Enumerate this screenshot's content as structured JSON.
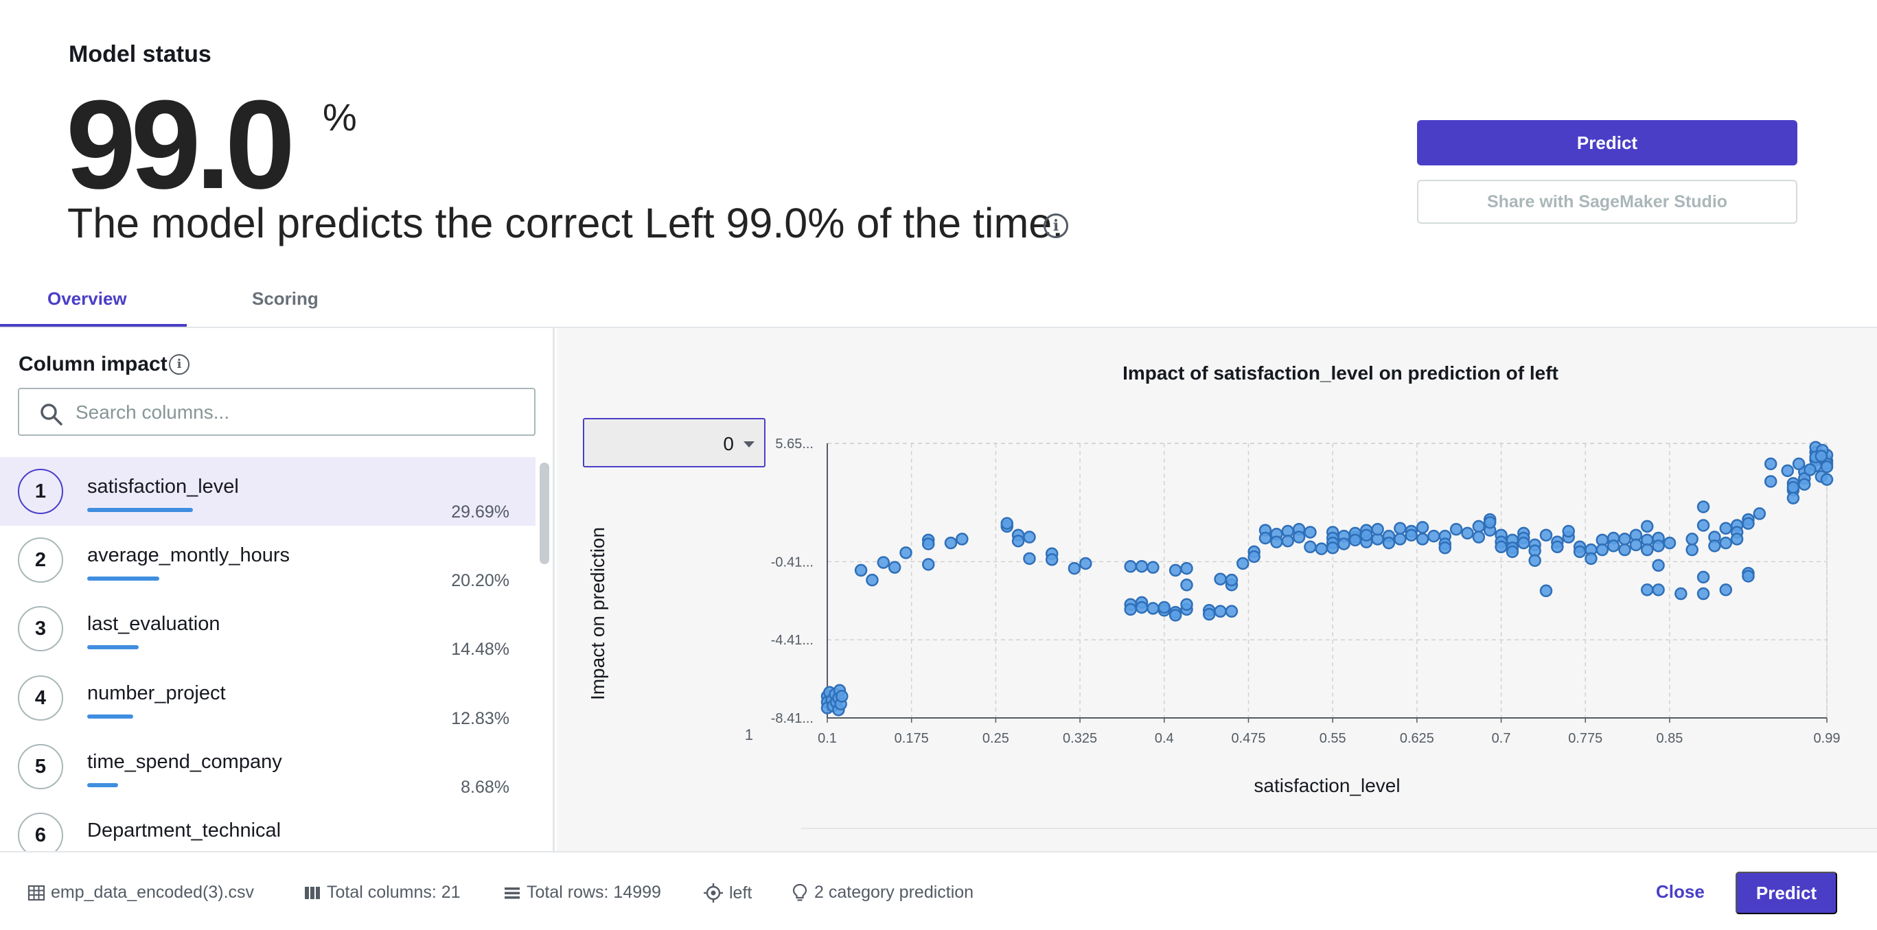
{
  "header": {
    "title": "Model status",
    "accuracy_value": "99.0",
    "accuracy_unit": "%",
    "summary": "The model predicts the correct Left 99.0% of the time.",
    "predict_label": "Predict",
    "share_label": "Share with SageMaker Studio"
  },
  "tabs": [
    {
      "label": "Overview",
      "active": true
    },
    {
      "label": "Scoring",
      "active": false
    }
  ],
  "column_impact": {
    "title": "Column impact",
    "search_placeholder": "Search columns...",
    "items": [
      {
        "rank": "1",
        "name": "satisfaction_level",
        "percent": "29.69%",
        "value": 29.69
      },
      {
        "rank": "2",
        "name": "average_montly_hours",
        "percent": "20.20%",
        "value": 20.2
      },
      {
        "rank": "3",
        "name": "last_evaluation",
        "percent": "14.48%",
        "value": 14.48
      },
      {
        "rank": "4",
        "name": "number_project",
        "percent": "12.83%",
        "value": 12.83
      },
      {
        "rank": "5",
        "name": "time_spend_company",
        "percent": "8.68%",
        "value": 8.68
      },
      {
        "rank": "6",
        "name": "Department_technical",
        "percent": "",
        "value": 0
      }
    ]
  },
  "chart_panel": {
    "class_select_value": "0",
    "stray_label": "1"
  },
  "chart_data": {
    "type": "scatter",
    "title": "Impact of satisfaction_level on prediction of left",
    "xlabel": "satisfaction_level",
    "ylabel": "Impact on prediction",
    "xlim": [
      0.1,
      0.99
    ],
    "ylim": [
      -8.41,
      5.65
    ],
    "x_ticks": [
      0.1,
      0.175,
      0.25,
      0.325,
      0.4,
      0.475,
      0.55,
      0.625,
      0.7,
      0.775,
      0.85,
      0.99
    ],
    "x_tick_labels": [
      "0.1",
      "0.175",
      "0.25",
      "0.325",
      "0.4",
      "0.475",
      "0.55",
      "0.625",
      "0.7",
      "0.775",
      "0.85",
      "0.99"
    ],
    "y_ticks": [
      5.65,
      -0.41,
      -4.41,
      -8.41
    ],
    "y_tick_labels": [
      "5.65...",
      "-0.41...",
      "-4.41...",
      "-8.41..."
    ],
    "grid": true,
    "point_color": "#5a9fe6",
    "point_stroke": "#2f6fb8",
    "points": [
      [
        0.1,
        -7.3
      ],
      [
        0.1,
        -7.6
      ],
      [
        0.1,
        -7.9
      ],
      [
        0.102,
        -7.1
      ],
      [
        0.104,
        -7.5
      ],
      [
        0.105,
        -7.8
      ],
      [
        0.107,
        -7.2
      ],
      [
        0.108,
        -7.6
      ],
      [
        0.11,
        -7.4
      ],
      [
        0.11,
        -8.0
      ],
      [
        0.111,
        -7.0
      ],
      [
        0.112,
        -7.7
      ],
      [
        0.113,
        -7.3
      ],
      [
        0.13,
        -0.85
      ],
      [
        0.14,
        -1.35
      ],
      [
        0.15,
        -0.45
      ],
      [
        0.16,
        -0.7
      ],
      [
        0.17,
        0.05
      ],
      [
        0.19,
        0.7
      ],
      [
        0.19,
        0.5
      ],
      [
        0.19,
        -0.55
      ],
      [
        0.21,
        0.55
      ],
      [
        0.22,
        0.75
      ],
      [
        0.26,
        1.4
      ],
      [
        0.26,
        1.55
      ],
      [
        0.27,
        0.95
      ],
      [
        0.27,
        0.65
      ],
      [
        0.28,
        0.85
      ],
      [
        0.28,
        -0.25
      ],
      [
        0.3,
        0.0
      ],
      [
        0.3,
        -0.3
      ],
      [
        0.32,
        -0.75
      ],
      [
        0.33,
        -0.5
      ],
      [
        0.37,
        -0.65
      ],
      [
        0.38,
        -0.65
      ],
      [
        0.37,
        -2.6
      ],
      [
        0.37,
        -2.85
      ],
      [
        0.38,
        -2.5
      ],
      [
        0.38,
        -2.75
      ],
      [
        0.39,
        -2.8
      ],
      [
        0.4,
        -2.9
      ],
      [
        0.4,
        -2.75
      ],
      [
        0.41,
        -3.0
      ],
      [
        0.41,
        -3.15
      ],
      [
        0.42,
        -2.85
      ],
      [
        0.42,
        -2.6
      ],
      [
        0.39,
        -0.7
      ],
      [
        0.41,
        -0.85
      ],
      [
        0.42,
        -0.75
      ],
      [
        0.42,
        -1.6
      ],
      [
        0.44,
        -2.9
      ],
      [
        0.44,
        -3.1
      ],
      [
        0.45,
        -2.95
      ],
      [
        0.46,
        -2.95
      ],
      [
        0.45,
        -1.3
      ],
      [
        0.46,
        -1.6
      ],
      [
        0.46,
        -1.35
      ],
      [
        0.47,
        -0.5
      ],
      [
        0.48,
        0.1
      ],
      [
        0.48,
        -0.15
      ],
      [
        0.49,
        1.2
      ],
      [
        0.49,
        0.8
      ],
      [
        0.5,
        1.0
      ],
      [
        0.5,
        0.6
      ],
      [
        0.51,
        1.15
      ],
      [
        0.51,
        0.65
      ],
      [
        0.52,
        1.25
      ],
      [
        0.52,
        0.85
      ],
      [
        0.53,
        1.1
      ],
      [
        0.53,
        0.35
      ],
      [
        0.54,
        0.25
      ],
      [
        0.55,
        1.1
      ],
      [
        0.55,
        0.8
      ],
      [
        0.55,
        0.55
      ],
      [
        0.55,
        0.3
      ],
      [
        0.56,
        0.9
      ],
      [
        0.56,
        0.5
      ],
      [
        0.57,
        0.85
      ],
      [
        0.57,
        1.05
      ],
      [
        0.57,
        0.7
      ],
      [
        0.58,
        0.6
      ],
      [
        0.58,
        1.2
      ],
      [
        0.58,
        0.95
      ],
      [
        0.59,
        0.75
      ],
      [
        0.59,
        1.25
      ],
      [
        0.6,
        0.9
      ],
      [
        0.6,
        0.55
      ],
      [
        0.61,
        0.75
      ],
      [
        0.61,
        1.3
      ],
      [
        0.62,
        1.15
      ],
      [
        0.62,
        0.95
      ],
      [
        0.63,
        0.75
      ],
      [
        0.63,
        1.35
      ],
      [
        0.64,
        0.9
      ],
      [
        0.65,
        0.9
      ],
      [
        0.65,
        0.5
      ],
      [
        0.65,
        0.3
      ],
      [
        0.66,
        1.25
      ],
      [
        0.67,
        1.05
      ],
      [
        0.68,
        1.4
      ],
      [
        0.68,
        0.85
      ],
      [
        0.69,
        1.2
      ],
      [
        0.69,
        1.75
      ],
      [
        0.69,
        1.6
      ],
      [
        0.7,
        0.95
      ],
      [
        0.7,
        0.6
      ],
      [
        0.7,
        0.35
      ],
      [
        0.71,
        0.7
      ],
      [
        0.71,
        0.3
      ],
      [
        0.71,
        0.1
      ],
      [
        0.72,
        1.05
      ],
      [
        0.72,
        0.8
      ],
      [
        0.72,
        0.55
      ],
      [
        0.73,
        0.45
      ],
      [
        0.73,
        0.15
      ],
      [
        0.73,
        -0.35
      ],
      [
        0.74,
        -1.9
      ],
      [
        0.74,
        0.95
      ],
      [
        0.75,
        0.6
      ],
      [
        0.75,
        0.35
      ],
      [
        0.76,
        0.85
      ],
      [
        0.76,
        1.15
      ],
      [
        0.77,
        0.35
      ],
      [
        0.77,
        0.1
      ],
      [
        0.78,
        0.2
      ],
      [
        0.78,
        -0.25
      ],
      [
        0.79,
        0.7
      ],
      [
        0.79,
        0.2
      ],
      [
        0.8,
        0.8
      ],
      [
        0.8,
        0.4
      ],
      [
        0.81,
        0.75
      ],
      [
        0.81,
        0.2
      ],
      [
        0.82,
        0.95
      ],
      [
        0.82,
        0.45
      ],
      [
        0.83,
        0.7
      ],
      [
        0.83,
        0.2
      ],
      [
        0.83,
        1.4
      ],
      [
        0.84,
        0.8
      ],
      [
        0.84,
        0.4
      ],
      [
        0.84,
        -0.6
      ],
      [
        0.85,
        0.55
      ],
      [
        0.83,
        -1.85
      ],
      [
        0.84,
        -1.85
      ],
      [
        0.86,
        -2.05
      ],
      [
        0.87,
        0.2
      ],
      [
        0.87,
        0.75
      ],
      [
        0.88,
        1.45
      ],
      [
        0.88,
        2.4
      ],
      [
        0.88,
        -1.2
      ],
      [
        0.88,
        -2.05
      ],
      [
        0.89,
        0.85
      ],
      [
        0.89,
        0.4
      ],
      [
        0.9,
        1.3
      ],
      [
        0.9,
        0.55
      ],
      [
        0.9,
        -1.85
      ],
      [
        0.91,
        1.45
      ],
      [
        0.91,
        1.1
      ],
      [
        0.91,
        0.75
      ],
      [
        0.92,
        1.75
      ],
      [
        0.92,
        1.55
      ],
      [
        0.92,
        -1.0
      ],
      [
        0.92,
        -1.15
      ],
      [
        0.93,
        2.05
      ],
      [
        0.94,
        4.6
      ],
      [
        0.94,
        3.7
      ],
      [
        0.96,
        3.6
      ],
      [
        0.96,
        3.25
      ],
      [
        0.96,
        2.85
      ],
      [
        0.97,
        4.2
      ],
      [
        0.97,
        3.85
      ],
      [
        0.97,
        3.55
      ],
      [
        0.98,
        5.2
      ],
      [
        0.98,
        5.45
      ],
      [
        0.98,
        4.8
      ],
      [
        0.98,
        4.5
      ],
      [
        0.98,
        4.95
      ],
      [
        0.985,
        3.95
      ],
      [
        0.99,
        4.75
      ],
      [
        0.99,
        5.05
      ],
      [
        0.99,
        4.6
      ],
      [
        0.99,
        3.8
      ],
      [
        0.975,
        4.3
      ],
      [
        0.965,
        4.6
      ],
      [
        0.955,
        4.25
      ],
      [
        0.96,
        3.4
      ],
      [
        0.986,
        5.3
      ],
      [
        0.99,
        4.45
      ],
      [
        0.985,
        5.0
      ]
    ]
  },
  "footer": {
    "file": "emp_data_encoded(3).csv",
    "total_columns": "Total columns: 21",
    "total_rows": "Total rows: 14999",
    "target": "left",
    "prediction_type": "2 category prediction",
    "close_label": "Close",
    "predict_label": "Predict"
  }
}
